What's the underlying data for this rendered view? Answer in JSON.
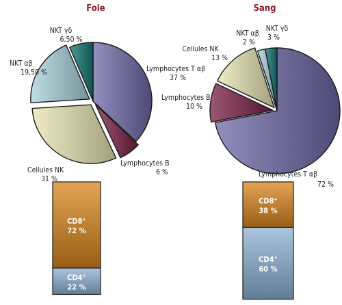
{
  "chart_data": [
    {
      "type": "pie",
      "title": "Foie",
      "slices": [
        {
          "label": "Lymphocytes T",
          "greek": "αβ",
          "value_text": "37 %",
          "value": 37,
          "color": "#6f6aa8"
        },
        {
          "label": "Lymphocytes B",
          "greek": "",
          "value_text": "6 %",
          "value": 6,
          "color": "#7a1f45"
        },
        {
          "label": "Cellules NK",
          "greek": "",
          "value_text": "31 %",
          "value": 31,
          "color": "#e9e6b4"
        },
        {
          "label": "NKT",
          "greek": "αβ",
          "value_text": "19,50 %",
          "value": 19.5,
          "color": "#a9d2dc"
        },
        {
          "label": "NKT",
          "greek": "γδ",
          "value_text": "6,50 %",
          "value": 6.5,
          "color": "#127873"
        }
      ]
    },
    {
      "type": "pie",
      "title": "Sang",
      "slices": [
        {
          "label": "Lymphocytes T",
          "greek": "αβ",
          "value_text": "72 %",
          "value": 72,
          "color": "#6f6aa8"
        },
        {
          "label": "Lymphocytes B",
          "greek": "",
          "value_text": "10 %",
          "value": 10,
          "color": "#7a1f45"
        },
        {
          "label": "Cellules NK",
          "greek": "",
          "value_text": "13 %",
          "value": 13,
          "color": "#e9e6b4"
        },
        {
          "label": "NKT",
          "greek": "αβ",
          "value_text": "2 %",
          "value": 2,
          "color": "#a9d2dc"
        },
        {
          "label": "NKT",
          "greek": "γδ",
          "value_text": "3 %",
          "value": 3,
          "color": "#127873"
        }
      ]
    },
    {
      "type": "bar",
      "stacked": true,
      "segments": [
        {
          "label": "CD8",
          "sup": "+",
          "value_text": "72 %",
          "value": 72,
          "color": "#d9861c"
        },
        {
          "label": "CD4",
          "sup": "+",
          "value_text": "22 %",
          "value": 22,
          "color": "#8fb2d6"
        }
      ]
    },
    {
      "type": "bar",
      "stacked": true,
      "segments": [
        {
          "label": "CD8",
          "sup": "+",
          "value_text": "38 %",
          "value": 38,
          "color": "#d9861c"
        },
        {
          "label": "CD4",
          "sup": "+",
          "value_text": "60 %",
          "value": 60,
          "color": "#8fb2d6"
        }
      ]
    }
  ]
}
